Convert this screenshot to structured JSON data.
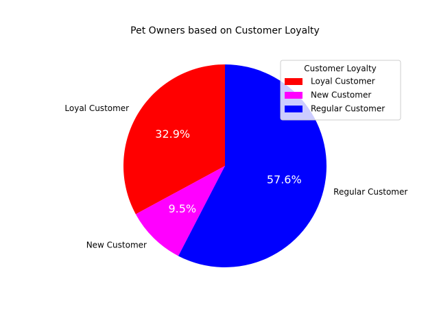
{
  "chart_data": {
    "type": "pie",
    "title": "Pet Owners based on Customer Loyalty",
    "categories": [
      "Loyal Customer",
      "New Customer",
      "Regular Customer"
    ],
    "values": [
      32.9,
      9.5,
      57.6
    ],
    "value_labels": [
      "32.9%",
      "9.5%",
      "57.6%"
    ],
    "colors": [
      "#ff0000",
      "#ff00ff",
      "#0000ff"
    ],
    "start_angle_deg": 90,
    "direction": "counterclockwise",
    "legend": {
      "title": "Customer Loyalty",
      "placement": "top-right",
      "entries": [
        "Loyal Customer",
        "New Customer",
        "Regular Customer"
      ]
    }
  }
}
